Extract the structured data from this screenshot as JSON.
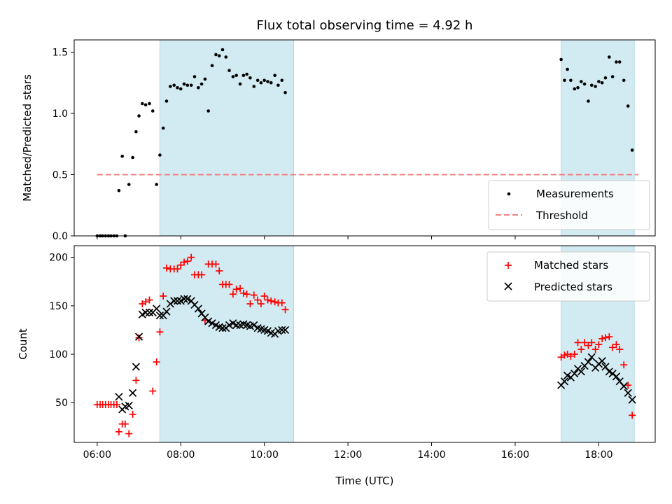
{
  "chart_data": {
    "title": "Flux total observing time = 4.92 h",
    "xlabel": "Time (UTC)",
    "x_ticks": [
      "06:00",
      "08:00",
      "10:00",
      "12:00",
      "14:00",
      "16:00",
      "18:00"
    ],
    "x_tick_hours": [
      6,
      8,
      10,
      12,
      14,
      16,
      18
    ],
    "xlim_hours": [
      5.45,
      19.35
    ],
    "shaded_intervals_hours": [
      [
        7.5,
        10.7
      ],
      [
        17.1,
        18.85
      ]
    ],
    "shade_color": "#add8e6",
    "top": {
      "type": "scatter",
      "ylabel": "Matched/Predicted stars",
      "ylim": [
        0,
        1.6
      ],
      "y_ticks": [
        0.0,
        0.5,
        1.0,
        1.5
      ],
      "y_tick_labels": [
        "0.0",
        "0.5",
        "1.0",
        "1.5"
      ],
      "threshold": {
        "value": 0.5,
        "x_range_hours": [
          6.0,
          18.95
        ],
        "color": "#f08080"
      },
      "legend": {
        "position": "lower right",
        "entries": [
          "Measurements",
          "Threshold"
        ]
      },
      "series": [
        {
          "name": "Measurements",
          "color": "#000000",
          "points": [
            [
              6.0,
              0.0
            ],
            [
              6.07,
              0.0
            ],
            [
              6.13,
              0.0
            ],
            [
              6.2,
              0.0
            ],
            [
              6.27,
              0.0
            ],
            [
              6.33,
              0.0
            ],
            [
              6.4,
              0.0
            ],
            [
              6.47,
              0.0
            ],
            [
              6.52,
              0.37
            ],
            [
              6.6,
              0.65
            ],
            [
              6.67,
              0.0
            ],
            [
              6.76,
              0.42
            ],
            [
              6.85,
              0.64
            ],
            [
              6.93,
              0.85
            ],
            [
              7.0,
              0.98
            ],
            [
              7.08,
              1.08
            ],
            [
              7.16,
              1.07
            ],
            [
              7.25,
              1.08
            ],
            [
              7.33,
              1.02
            ],
            [
              7.42,
              0.42
            ],
            [
              7.5,
              0.66
            ],
            [
              7.58,
              0.88
            ],
            [
              7.66,
              1.1
            ],
            [
              7.75,
              1.22
            ],
            [
              7.84,
              1.23
            ],
            [
              7.92,
              1.21
            ],
            [
              8.0,
              1.2
            ],
            [
              8.08,
              1.24
            ],
            [
              8.16,
              1.23
            ],
            [
              8.25,
              1.23
            ],
            [
              8.33,
              1.3
            ],
            [
              8.42,
              1.21
            ],
            [
              8.5,
              1.24
            ],
            [
              8.58,
              1.28
            ],
            [
              8.66,
              1.02
            ],
            [
              8.75,
              1.39
            ],
            [
              8.84,
              1.48
            ],
            [
              8.92,
              1.47
            ],
            [
              9.0,
              1.52
            ],
            [
              9.08,
              1.46
            ],
            [
              9.16,
              1.35
            ],
            [
              9.25,
              1.3
            ],
            [
              9.33,
              1.31
            ],
            [
              9.42,
              1.24
            ],
            [
              9.5,
              1.31
            ],
            [
              9.58,
              1.32
            ],
            [
              9.66,
              1.29
            ],
            [
              9.75,
              1.22
            ],
            [
              9.84,
              1.27
            ],
            [
              9.92,
              1.25
            ],
            [
              10.0,
              1.27
            ],
            [
              10.08,
              1.26
            ],
            [
              10.16,
              1.25
            ],
            [
              10.25,
              1.31
            ],
            [
              10.33,
              1.23
            ],
            [
              10.42,
              1.27
            ],
            [
              10.5,
              1.17
            ],
            [
              17.1,
              1.44
            ],
            [
              17.18,
              1.27
            ],
            [
              17.25,
              1.36
            ],
            [
              17.33,
              1.27
            ],
            [
              17.42,
              1.2
            ],
            [
              17.5,
              1.21
            ],
            [
              17.58,
              1.26
            ],
            [
              17.66,
              1.24
            ],
            [
              17.75,
              1.1
            ],
            [
              17.83,
              1.23
            ],
            [
              17.92,
              1.22
            ],
            [
              18.0,
              1.26
            ],
            [
              18.08,
              1.25
            ],
            [
              18.16,
              1.29
            ],
            [
              18.25,
              1.46
            ],
            [
              18.33,
              1.3
            ],
            [
              18.42,
              1.42
            ],
            [
              18.5,
              1.42
            ],
            [
              18.6,
              1.27
            ],
            [
              18.7,
              1.06
            ],
            [
              18.8,
              0.7
            ]
          ]
        }
      ]
    },
    "bottom": {
      "type": "scatter",
      "ylabel": "Count",
      "ylim": [
        9,
        212
      ],
      "y_ticks": [
        50,
        100,
        150,
        200
      ],
      "y_tick_labels": [
        "50",
        "100",
        "150",
        "200"
      ],
      "legend": {
        "position": "upper right",
        "entries": [
          "Matched stars",
          "Predicted stars"
        ]
      },
      "series": [
        {
          "name": "Matched stars",
          "marker": "plus",
          "color": "#ff0000",
          "points": [
            [
              6.0,
              48
            ],
            [
              6.07,
              48
            ],
            [
              6.13,
              48
            ],
            [
              6.2,
              48
            ],
            [
              6.27,
              48
            ],
            [
              6.33,
              48
            ],
            [
              6.4,
              48
            ],
            [
              6.47,
              48
            ],
            [
              6.52,
              20
            ],
            [
              6.6,
              28
            ],
            [
              6.67,
              28
            ],
            [
              6.76,
              18
            ],
            [
              6.85,
              38
            ],
            [
              6.93,
              73
            ],
            [
              7.0,
              117
            ],
            [
              7.08,
              152
            ],
            [
              7.16,
              154
            ],
            [
              7.25,
              156
            ],
            [
              7.33,
              62
            ],
            [
              7.42,
              92
            ],
            [
              7.5,
              123
            ],
            [
              7.58,
              160
            ],
            [
              7.66,
              189
            ],
            [
              7.75,
              188
            ],
            [
              7.84,
              188
            ],
            [
              7.92,
              188
            ],
            [
              8.0,
              192
            ],
            [
              8.08,
              195
            ],
            [
              8.16,
              196
            ],
            [
              8.25,
              200
            ],
            [
              8.33,
              182
            ],
            [
              8.42,
              182
            ],
            [
              8.5,
              182
            ],
            [
              8.58,
              135
            ],
            [
              8.66,
              193
            ],
            [
              8.75,
              193
            ],
            [
              8.84,
              193
            ],
            [
              8.92,
              186
            ],
            [
              9.0,
              172
            ],
            [
              9.08,
              172
            ],
            [
              9.16,
              172
            ],
            [
              9.25,
              162
            ],
            [
              9.33,
              167
            ],
            [
              9.42,
              168
            ],
            [
              9.5,
              163
            ],
            [
              9.58,
              162
            ],
            [
              9.66,
              152
            ],
            [
              9.75,
              161
            ],
            [
              9.84,
              156
            ],
            [
              9.92,
              152
            ],
            [
              10.0,
              160
            ],
            [
              10.08,
              156
            ],
            [
              10.16,
              155
            ],
            [
              10.25,
              154
            ],
            [
              10.33,
              153
            ],
            [
              10.42,
              153
            ],
            [
              10.5,
              146
            ],
            [
              17.1,
              97
            ],
            [
              17.18,
              99
            ],
            [
              17.25,
              100
            ],
            [
              17.33,
              98
            ],
            [
              17.42,
              100
            ],
            [
              17.5,
              112
            ],
            [
              17.58,
              105
            ],
            [
              17.66,
              112
            ],
            [
              17.75,
              109
            ],
            [
              17.83,
              112
            ],
            [
              17.92,
              105
            ],
            [
              18.0,
              110
            ],
            [
              18.08,
              116
            ],
            [
              18.16,
              117
            ],
            [
              18.25,
              118
            ],
            [
              18.33,
              107
            ],
            [
              18.42,
              110
            ],
            [
              18.5,
              105
            ],
            [
              18.6,
              89
            ],
            [
              18.7,
              68
            ],
            [
              18.8,
              37
            ]
          ]
        },
        {
          "name": "Predicted stars",
          "marker": "x",
          "color": "#000000",
          "points": [
            [
              6.52,
              56
            ],
            [
              6.6,
              43
            ],
            [
              6.67,
              46
            ],
            [
              6.76,
              47
            ],
            [
              6.85,
              60
            ],
            [
              6.93,
              87
            ],
            [
              7.0,
              118
            ],
            [
              7.08,
              141
            ],
            [
              7.16,
              143
            ],
            [
              7.25,
              143
            ],
            [
              7.33,
              143
            ],
            [
              7.42,
              147
            ],
            [
              7.5,
              140
            ],
            [
              7.58,
              140
            ],
            [
              7.66,
              144
            ],
            [
              7.75,
              152
            ],
            [
              7.84,
              155
            ],
            [
              7.92,
              155
            ],
            [
              8.0,
              155
            ],
            [
              8.08,
              157
            ],
            [
              8.16,
              157
            ],
            [
              8.25,
              155
            ],
            [
              8.33,
              151
            ],
            [
              8.42,
              147
            ],
            [
              8.5,
              142
            ],
            [
              8.58,
              138
            ],
            [
              8.66,
              134
            ],
            [
              8.75,
              132
            ],
            [
              8.84,
              130
            ],
            [
              8.92,
              128
            ],
            [
              9.0,
              127
            ],
            [
              9.08,
              127
            ],
            [
              9.16,
              130
            ],
            [
              9.25,
              132
            ],
            [
              9.33,
              130
            ],
            [
              9.42,
              130
            ],
            [
              9.5,
              131
            ],
            [
              9.58,
              130
            ],
            [
              9.66,
              129
            ],
            [
              9.75,
              130
            ],
            [
              9.84,
              127
            ],
            [
              9.92,
              126
            ],
            [
              10.0,
              125
            ],
            [
              10.08,
              124
            ],
            [
              10.16,
              122
            ],
            [
              10.25,
              121
            ],
            [
              10.33,
              124
            ],
            [
              10.42,
              125
            ],
            [
              10.5,
              125
            ],
            [
              17.1,
              68
            ],
            [
              17.18,
              72
            ],
            [
              17.25,
              78
            ],
            [
              17.33,
              76
            ],
            [
              17.42,
              80
            ],
            [
              17.5,
              85
            ],
            [
              17.58,
              82
            ],
            [
              17.66,
              88
            ],
            [
              17.75,
              92
            ],
            [
              17.83,
              97
            ],
            [
              17.92,
              86
            ],
            [
              18.0,
              90
            ],
            [
              18.08,
              93
            ],
            [
              18.16,
              87
            ],
            [
              18.25,
              82
            ],
            [
              18.33,
              80
            ],
            [
              18.42,
              77
            ],
            [
              18.5,
              72
            ],
            [
              18.6,
              67
            ],
            [
              18.7,
              60
            ],
            [
              18.8,
              53
            ]
          ]
        }
      ]
    }
  }
}
